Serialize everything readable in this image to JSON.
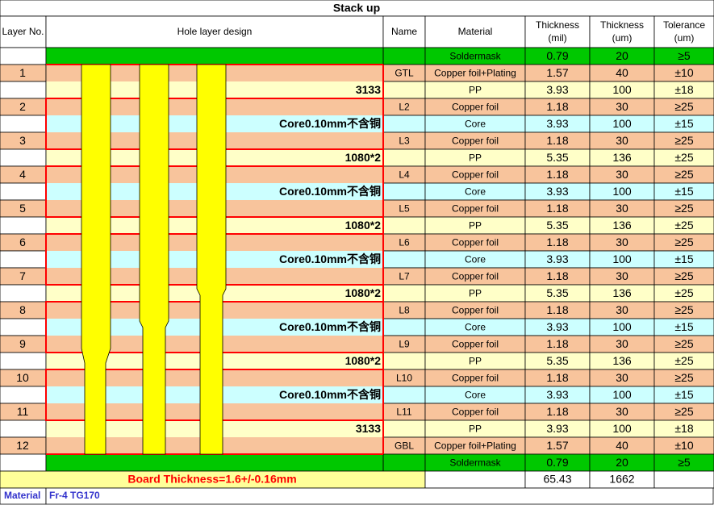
{
  "title": "Stack up",
  "headers": [
    [
      "Layer No."
    ],
    [
      "Hole layer design"
    ],
    [
      "Name"
    ],
    [
      "Material"
    ],
    [
      "Thickness",
      "(mil)"
    ],
    [
      "Thickness",
      "(um)"
    ],
    [
      "Tolerance",
      "(um)"
    ]
  ],
  "rows": [
    {
      "layer": null,
      "design": null,
      "name": null,
      "material": "Soldermask",
      "mil": 0.79,
      "um": 20,
      "tolerance": "≥5",
      "color": "#00c800"
    },
    {
      "layer": "1",
      "design": null,
      "name": "GTL",
      "material": "Copper foil+Plating",
      "mil": 1.57,
      "um": 40,
      "tolerance": "±10",
      "color": "#f8c49c"
    },
    {
      "layer": null,
      "design": "3133",
      "name": null,
      "material": "PP",
      "mil": 3.93,
      "um": 100,
      "tolerance": "±18",
      "color": "#ffffc8"
    },
    {
      "layer": "2",
      "design": null,
      "name": "L2",
      "material": "Copper foil",
      "mil": 1.18,
      "um": 30,
      "tolerance": "≥25",
      "color": "#f8c49c"
    },
    {
      "layer": null,
      "design": "Core0.10mm不含铜",
      "name": null,
      "material": "Core",
      "mil": 3.93,
      "um": 100,
      "tolerance": "±15",
      "color": "#ccffff"
    },
    {
      "layer": "3",
      "design": null,
      "name": "L3",
      "material": "Copper foil",
      "mil": 1.18,
      "um": 30,
      "tolerance": "≥25",
      "color": "#f8c49c"
    },
    {
      "layer": null,
      "design": "1080*2",
      "name": null,
      "material": "PP",
      "mil": 5.35,
      "um": 136,
      "tolerance": "±25",
      "color": "#ffffc8"
    },
    {
      "layer": "4",
      "design": null,
      "name": "L4",
      "material": "Copper foil",
      "mil": 1.18,
      "um": 30,
      "tolerance": "≥25",
      "color": "#f8c49c"
    },
    {
      "layer": null,
      "design": "Core0.10mm不含铜",
      "name": null,
      "material": "Core",
      "mil": 3.93,
      "um": 100,
      "tolerance": "±15",
      "color": "#ccffff"
    },
    {
      "layer": "5",
      "design": null,
      "name": "L5",
      "material": "Copper foil",
      "mil": 1.18,
      "um": 30,
      "tolerance": "≥25",
      "color": "#f8c49c"
    },
    {
      "layer": null,
      "design": "1080*2",
      "name": null,
      "material": "PP",
      "mil": 5.35,
      "um": 136,
      "tolerance": "±25",
      "color": "#ffffc8"
    },
    {
      "layer": "6",
      "design": null,
      "name": "L6",
      "material": "Copper foil",
      "mil": 1.18,
      "um": 30,
      "tolerance": "≥25",
      "color": "#f8c49c"
    },
    {
      "layer": null,
      "design": "Core0.10mm不含铜",
      "name": null,
      "material": "Core",
      "mil": 3.93,
      "um": 100,
      "tolerance": "±15",
      "color": "#ccffff"
    },
    {
      "layer": "7",
      "design": null,
      "name": "L7",
      "material": "Copper foil",
      "mil": 1.18,
      "um": 30,
      "tolerance": "≥25",
      "color": "#f8c49c"
    },
    {
      "layer": null,
      "design": "1080*2",
      "name": null,
      "material": "PP",
      "mil": 5.35,
      "um": 136,
      "tolerance": "±25",
      "color": "#ffffc8"
    },
    {
      "layer": "8",
      "design": null,
      "name": "L8",
      "material": "Copper foil",
      "mil": 1.18,
      "um": 30,
      "tolerance": "≥25",
      "color": "#f8c49c"
    },
    {
      "layer": null,
      "design": "Core0.10mm不含铜",
      "name": null,
      "material": "Core",
      "mil": 3.93,
      "um": 100,
      "tolerance": "±15",
      "color": "#ccffff"
    },
    {
      "layer": "9",
      "design": null,
      "name": "L9",
      "material": "Copper foil",
      "mil": 1.18,
      "um": 30,
      "tolerance": "≥25",
      "color": "#f8c49c"
    },
    {
      "layer": null,
      "design": "1080*2",
      "name": null,
      "material": "PP",
      "mil": 5.35,
      "um": 136,
      "tolerance": "±25",
      "color": "#ffffc8"
    },
    {
      "layer": "10",
      "design": null,
      "name": "L10",
      "material": "Copper foil",
      "mil": 1.18,
      "um": 30,
      "tolerance": "≥25",
      "color": "#f8c49c"
    },
    {
      "layer": null,
      "design": "Core0.10mm不含铜",
      "name": null,
      "material": "Core",
      "mil": 3.93,
      "um": 100,
      "tolerance": "±15",
      "color": "#ccffff"
    },
    {
      "layer": "11",
      "design": null,
      "name": "L11",
      "material": "Copper foil",
      "mil": 1.18,
      "um": 30,
      "tolerance": "≥25",
      "color": "#f8c49c"
    },
    {
      "layer": null,
      "design": "3133",
      "name": null,
      "material": "PP",
      "mil": 3.93,
      "um": 100,
      "tolerance": "±18",
      "color": "#ffffc8"
    },
    {
      "layer": "12",
      "design": null,
      "name": "GBL",
      "material": "Copper foil+Plating",
      "mil": 1.57,
      "um": 40,
      "tolerance": "±10",
      "color": "#f8c49c"
    },
    {
      "layer": null,
      "design": null,
      "name": null,
      "material": "Soldermask",
      "mil": 0.79,
      "um": 20,
      "tolerance": "≥5",
      "color": "#00c800"
    }
  ],
  "board_thickness": "Board Thickness=1.6+/-0.16mm",
  "total_mil": 65.43,
  "total_um": 1662,
  "material_label": "Material",
  "material_value": "Fr-4 TG170"
}
